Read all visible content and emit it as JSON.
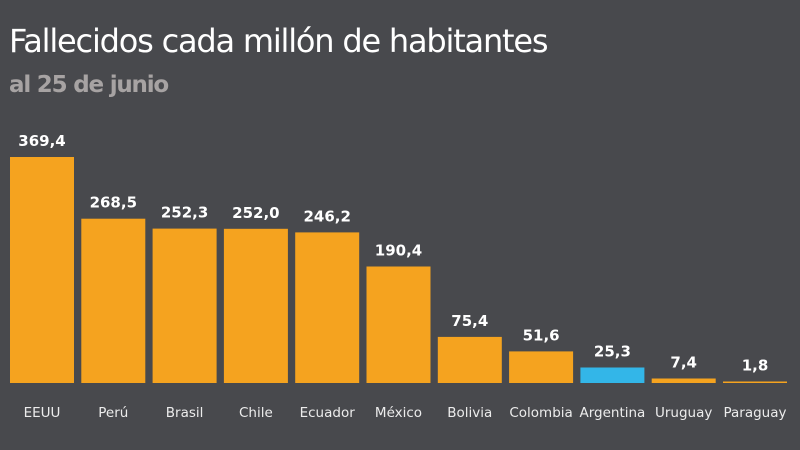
{
  "chart_data": {
    "type": "bar",
    "title": "Fallecidos cada millón de habitantes",
    "subtitle": "al 25 de junio",
    "xlabel": "",
    "ylabel": "",
    "ylim": [
      0,
      369.4
    ],
    "grid": false,
    "legend": "none",
    "categories": [
      "EEUU",
      "Perú",
      "Brasil",
      "Chile",
      "Ecuador",
      "México",
      "Bolivia",
      "Colombia",
      "Argentina",
      "Uruguay",
      "Paraguay"
    ],
    "values": [
      369.4,
      268.5,
      252.3,
      252.0,
      246.2,
      190.4,
      75.4,
      51.6,
      25.3,
      7.4,
      1.8
    ],
    "value_labels": [
      "369,4",
      "268,5",
      "252,3",
      "252,0",
      "246,2",
      "190,4",
      "75,4",
      "51,6",
      "25,3",
      "7,4",
      "1,8"
    ],
    "highlight_category": "Argentina",
    "colors": {
      "default": "#f5a31f",
      "highlight": "#33b6e8",
      "background": "#48494d",
      "title": "#ffffff",
      "subtitle": "#a7a3a3",
      "labels": "#ffffff"
    }
  }
}
